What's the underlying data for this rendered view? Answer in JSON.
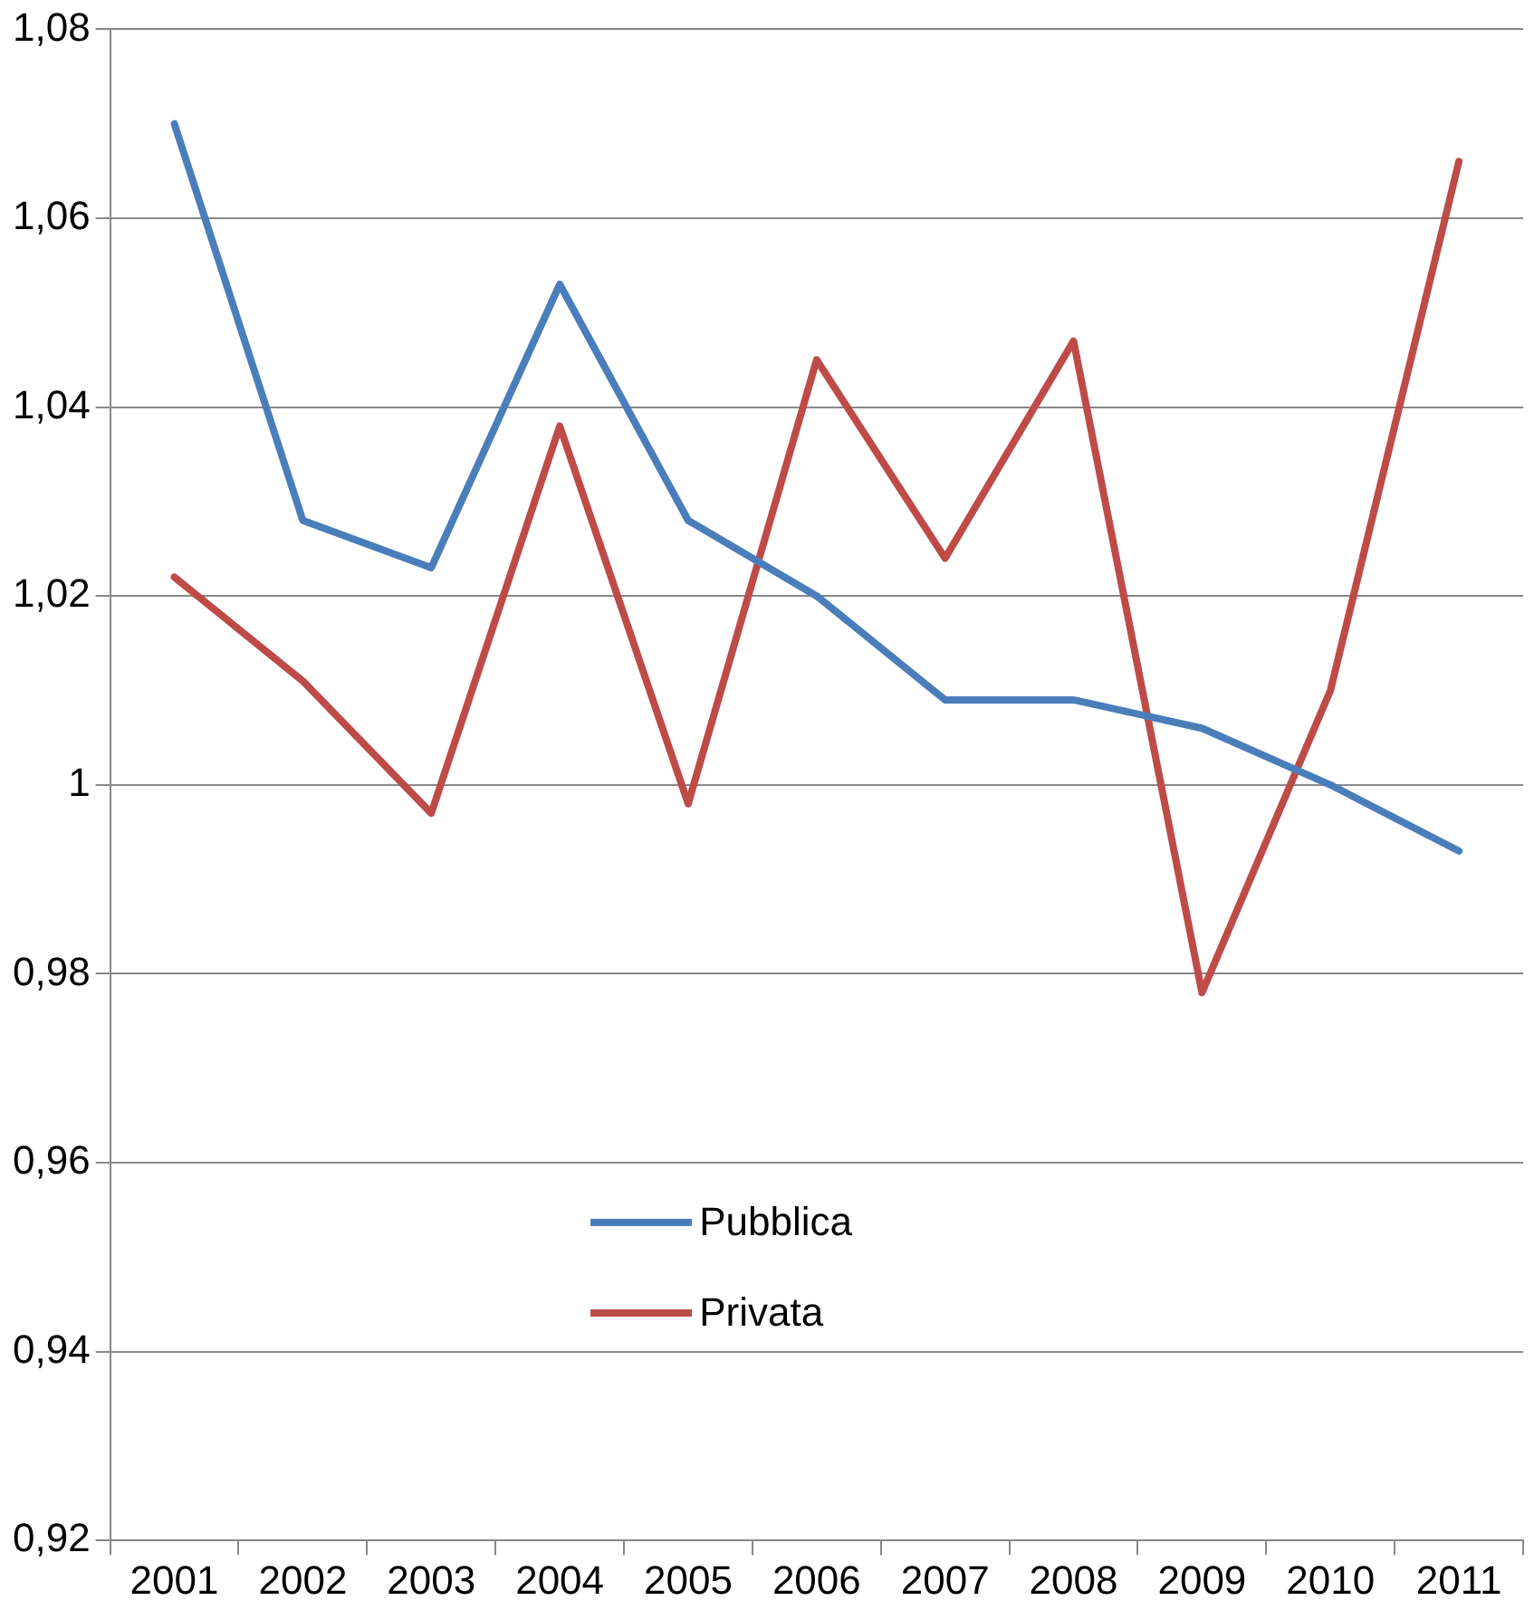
{
  "chart_data": {
    "type": "line",
    "categories": [
      "2001",
      "2002",
      "2003",
      "2004",
      "2005",
      "2006",
      "2007",
      "2008",
      "2009",
      "2010",
      "2011"
    ],
    "series": [
      {
        "name": "Pubblica",
        "color": "#4a7ebb",
        "values": [
          1.07,
          1.028,
          1.023,
          1.053,
          1.028,
          1.02,
          1.009,
          1.009,
          1.006,
          1.0,
          0.993
        ]
      },
      {
        "name": "Privata",
        "color": "#be4b48",
        "values": [
          1.022,
          1.011,
          0.997,
          1.038,
          0.998,
          1.045,
          1.024,
          1.047,
          0.978,
          1.01,
          1.066
        ]
      }
    ],
    "ylim": [
      0.92,
      1.08
    ],
    "yticks": [
      {
        "value": 0.92,
        "label": "0,92"
      },
      {
        "value": 0.94,
        "label": "0,94"
      },
      {
        "value": 0.96,
        "label": "0,96"
      },
      {
        "value": 0.98,
        "label": "0,98"
      },
      1,
      {
        "value": 1.02,
        "label": "1,02"
      },
      {
        "value": 1.04,
        "label": "1,04"
      },
      {
        "value": 1.06,
        "label": "1,06"
      },
      {
        "value": 1.08,
        "label": "1,08"
      }
    ],
    "grid": "y",
    "legend": "center",
    "marker": "none",
    "line_style": "solid"
  }
}
